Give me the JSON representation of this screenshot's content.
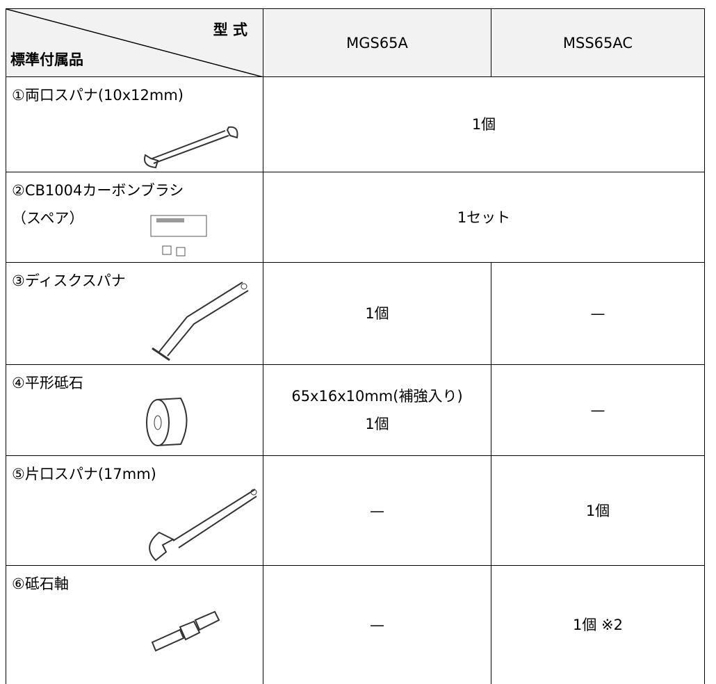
{
  "header": {
    "corner_top": "型 式",
    "corner_bottom": "標準付属品",
    "columns": [
      "MGS65A",
      "MSS65AC"
    ]
  },
  "rows": [
    {
      "label": [
        "①両口スパナ(10x12mm)"
      ],
      "cells": [
        [
          "1個"
        ]
      ]
    },
    {
      "label": [
        "②CB1004カーボンブラシ",
        "（スペア）"
      ],
      "cells": [
        [
          "1セット"
        ]
      ]
    },
    {
      "label": [
        "③ディスクスパナ"
      ],
      "cells": [
        [
          "1個"
        ],
        [
          "—"
        ]
      ]
    },
    {
      "label": [
        "④平形砥石"
      ],
      "cells": [
        [
          "65x16x10mm(補強入り)",
          "1個"
        ],
        [
          "—"
        ]
      ]
    },
    {
      "label": [
        "⑤片口スパナ(17mm)"
      ],
      "cells": [
        [
          "—"
        ],
        [
          "1個"
        ]
      ]
    },
    {
      "label": [
        "⑥砥石軸"
      ],
      "cells": [
        [
          "—"
        ],
        [
          "1個 ※2"
        ]
      ]
    }
  ]
}
